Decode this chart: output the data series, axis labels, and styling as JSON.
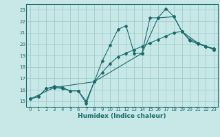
{
  "xlabel": "Humidex (Indice chaleur)",
  "bg_color": "#c8e8e8",
  "grid_color": "#a0cccc",
  "line_color": "#1a6b6b",
  "xlim": [
    -0.5,
    23.5
  ],
  "ylim": [
    14.5,
    23.5
  ],
  "xticks": [
    0,
    1,
    2,
    3,
    4,
    5,
    6,
    7,
    8,
    9,
    10,
    11,
    12,
    13,
    14,
    15,
    16,
    17,
    18,
    19,
    20,
    21,
    22,
    23
  ],
  "yticks": [
    15,
    16,
    17,
    18,
    19,
    20,
    21,
    22,
    23
  ],
  "line1_x": [
    0,
    1,
    2,
    3,
    4,
    5,
    6,
    7,
    8,
    9,
    10,
    11,
    12,
    13,
    14,
    15,
    16,
    17,
    18,
    19,
    20,
    21,
    22,
    23
  ],
  "line1_y": [
    15.2,
    15.4,
    16.1,
    16.2,
    16.1,
    15.9,
    15.9,
    14.8,
    16.7,
    18.5,
    19.9,
    21.3,
    21.6,
    19.2,
    19.2,
    22.3,
    22.3,
    23.1,
    22.4,
    21.1,
    20.4,
    20.1,
    19.8,
    19.6
  ],
  "line2_x": [
    0,
    1,
    2,
    3,
    4,
    5,
    6,
    7,
    8,
    9,
    10,
    11,
    12,
    13,
    14,
    15,
    16,
    17,
    18,
    19,
    20,
    21,
    22,
    23
  ],
  "line2_y": [
    15.2,
    15.4,
    16.1,
    16.3,
    16.2,
    15.9,
    15.9,
    15.0,
    16.7,
    17.5,
    18.3,
    18.9,
    19.2,
    19.5,
    19.8,
    20.1,
    20.4,
    20.7,
    21.0,
    21.1,
    20.3,
    20.0,
    19.8,
    19.5
  ],
  "line3_x": [
    0,
    3,
    8,
    14,
    16,
    18,
    19,
    21,
    22,
    23
  ],
  "line3_y": [
    15.2,
    16.2,
    16.7,
    19.2,
    22.3,
    22.4,
    21.1,
    20.1,
    19.8,
    19.6
  ]
}
